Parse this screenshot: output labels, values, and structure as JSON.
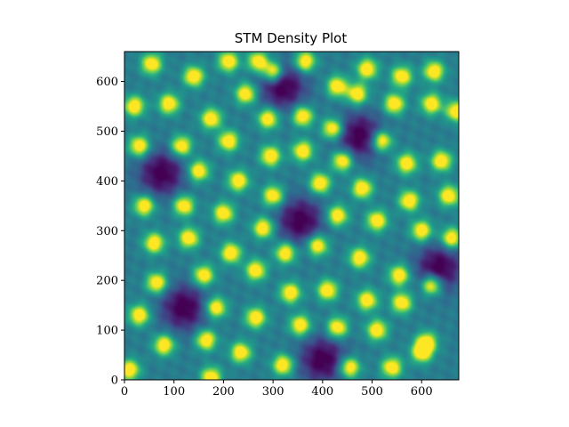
{
  "chart_data": {
    "type": "heatmap",
    "title": "STM Density Plot",
    "xlabel": "",
    "ylabel": "",
    "xlim": [
      0,
      675
    ],
    "ylim": [
      0,
      660
    ],
    "x_ticks": [
      0,
      100,
      200,
      300,
      400,
      500,
      600
    ],
    "y_ticks": [
      0,
      100,
      200,
      300,
      400,
      500,
      600
    ],
    "colormap": "viridis",
    "colors": {
      "low": "#440154",
      "mid_low": "#31688e",
      "mid": "#21918c",
      "mid_high": "#5ec962",
      "high": "#fde725"
    },
    "grid": false,
    "legend": "none",
    "dark_minima": [
      {
        "x": 320,
        "y": 590
      },
      {
        "x": 475,
        "y": 490
      },
      {
        "x": 75,
        "y": 415
      },
      {
        "x": 355,
        "y": 320
      },
      {
        "x": 635,
        "y": 225
      },
      {
        "x": 120,
        "y": 145
      },
      {
        "x": 400,
        "y": 40
      }
    ],
    "bright_maxima": [
      {
        "x": 55,
        "y": 635
      },
      {
        "x": 140,
        "y": 610
      },
      {
        "x": 210,
        "y": 640
      },
      {
        "x": 270,
        "y": 640
      },
      {
        "x": 245,
        "y": 575
      },
      {
        "x": 300,
        "y": 620
      },
      {
        "x": 365,
        "y": 640
      },
      {
        "x": 430,
        "y": 590
      },
      {
        "x": 490,
        "y": 625
      },
      {
        "x": 560,
        "y": 610
      },
      {
        "x": 625,
        "y": 620
      },
      {
        "x": 670,
        "y": 540
      },
      {
        "x": 20,
        "y": 550
      },
      {
        "x": 90,
        "y": 555
      },
      {
        "x": 175,
        "y": 525
      },
      {
        "x": 290,
        "y": 525
      },
      {
        "x": 360,
        "y": 530
      },
      {
        "x": 420,
        "y": 505
      },
      {
        "x": 470,
        "y": 575
      },
      {
        "x": 545,
        "y": 555
      },
      {
        "x": 620,
        "y": 555
      },
      {
        "x": 30,
        "y": 470
      },
      {
        "x": 115,
        "y": 470
      },
      {
        "x": 210,
        "y": 480
      },
      {
        "x": 295,
        "y": 450
      },
      {
        "x": 360,
        "y": 460
      },
      {
        "x": 440,
        "y": 440
      },
      {
        "x": 520,
        "y": 480
      },
      {
        "x": 570,
        "y": 435
      },
      {
        "x": 640,
        "y": 440
      },
      {
        "x": 150,
        "y": 420
      },
      {
        "x": 230,
        "y": 400
      },
      {
        "x": 300,
        "y": 370
      },
      {
        "x": 395,
        "y": 395
      },
      {
        "x": 480,
        "y": 385
      },
      {
        "x": 575,
        "y": 360
      },
      {
        "x": 655,
        "y": 370
      },
      {
        "x": 40,
        "y": 350
      },
      {
        "x": 120,
        "y": 350
      },
      {
        "x": 200,
        "y": 335
      },
      {
        "x": 280,
        "y": 305
      },
      {
        "x": 430,
        "y": 330
      },
      {
        "x": 510,
        "y": 320
      },
      {
        "x": 600,
        "y": 300
      },
      {
        "x": 660,
        "y": 285
      },
      {
        "x": 60,
        "y": 275
      },
      {
        "x": 130,
        "y": 285
      },
      {
        "x": 215,
        "y": 255
      },
      {
        "x": 325,
        "y": 255
      },
      {
        "x": 390,
        "y": 270
      },
      {
        "x": 475,
        "y": 245
      },
      {
        "x": 555,
        "y": 210
      },
      {
        "x": 620,
        "y": 190
      },
      {
        "x": 65,
        "y": 195
      },
      {
        "x": 160,
        "y": 210
      },
      {
        "x": 265,
        "y": 220
      },
      {
        "x": 335,
        "y": 175
      },
      {
        "x": 410,
        "y": 180
      },
      {
        "x": 490,
        "y": 160
      },
      {
        "x": 560,
        "y": 155
      },
      {
        "x": 30,
        "y": 130
      },
      {
        "x": 185,
        "y": 145
      },
      {
        "x": 265,
        "y": 125
      },
      {
        "x": 355,
        "y": 110
      },
      {
        "x": 430,
        "y": 105
      },
      {
        "x": 510,
        "y": 100
      },
      {
        "x": 610,
        "y": 75
      },
      {
        "x": 80,
        "y": 70
      },
      {
        "x": 165,
        "y": 80
      },
      {
        "x": 235,
        "y": 55
      },
      {
        "x": 320,
        "y": 30
      },
      {
        "x": 455,
        "y": 25
      },
      {
        "x": 540,
        "y": 25
      },
      {
        "x": 600,
        "y": 55
      },
      {
        "x": 10,
        "y": 20
      },
      {
        "x": 175,
        "y": 5
      }
    ]
  }
}
